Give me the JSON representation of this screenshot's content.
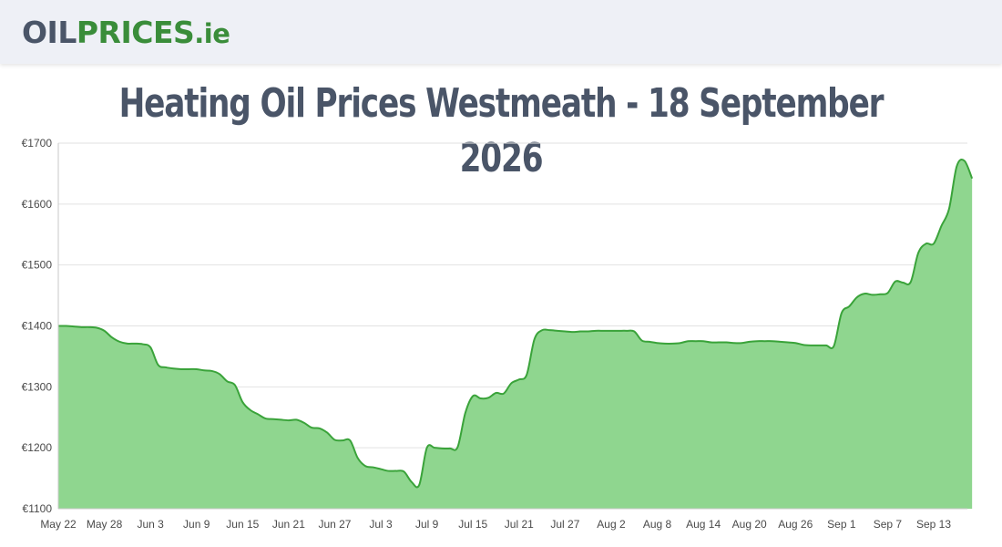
{
  "header": {
    "logo": {
      "part1": "OIL",
      "part2": "PRICES",
      "part3": ".ie"
    }
  },
  "page": {
    "title": "Heating Oil Prices Westmeath - 18 September 2026"
  },
  "colors": {
    "line": "#3aa33a",
    "area": "#8fd68f",
    "grid": "#e2e2e2"
  },
  "chart_data": {
    "type": "area",
    "title": "",
    "xlabel": "",
    "ylabel": "",
    "ylim": [
      1100,
      1700
    ],
    "yticks": [
      "€1100",
      "€1200",
      "€1300",
      "€1400",
      "€1500",
      "€1600",
      "€1700"
    ],
    "ytick_values": [
      1100,
      1200,
      1300,
      1400,
      1500,
      1600,
      1700
    ],
    "xticks": [
      "May 22",
      "May 28",
      "Jun 3",
      "Jun 9",
      "Jun 15",
      "Jun 21",
      "Jun 27",
      "Jul 3",
      "Jul 9",
      "Jul 15",
      "Jul 21",
      "Jul 27",
      "Aug 2",
      "Aug 8",
      "Aug 14",
      "Aug 20",
      "Aug 26",
      "Sep 1",
      "Sep 7",
      "Sep 13"
    ],
    "grid": true,
    "legend": "none",
    "x_start": "May 22",
    "x_end": "Sep 18",
    "series": [
      {
        "x": [
          "May 22",
          "May 23",
          "May 24",
          "May 25",
          "May 26",
          "May 27",
          "May 28",
          "May 29",
          "May 30",
          "May 31",
          "Jun 1",
          "Jun 2",
          "Jun 3",
          "Jun 4",
          "Jun 5",
          "Jun 6",
          "Jun 7",
          "Jun 8",
          "Jun 9",
          "Jun 10",
          "Jun 11",
          "Jun 12",
          "Jun 13",
          "Jun 14",
          "Jun 15",
          "Jun 16",
          "Jun 17",
          "Jun 18",
          "Jun 19",
          "Jun 20",
          "Jun 21",
          "Jun 22",
          "Jun 23",
          "Jun 24",
          "Jun 25",
          "Jun 26",
          "Jun 27",
          "Jun 28",
          "Jun 29",
          "Jun 30",
          "Jul 1",
          "Jul 2",
          "Jul 3",
          "Jul 4",
          "Jul 5",
          "Jul 6",
          "Jul 7",
          "Jul 8",
          "Jul 9",
          "Jul 10",
          "Jul 11",
          "Jul 12",
          "Jul 13",
          "Jul 14",
          "Jul 15",
          "Jul 16",
          "Jul 17",
          "Jul 18",
          "Jul 19",
          "Jul 20",
          "Jul 21",
          "Jul 22",
          "Jul 23",
          "Jul 24",
          "Jul 25",
          "Jul 26",
          "Jul 27",
          "Jul 28",
          "Jul 29",
          "Jul 30",
          "Jul 31",
          "Aug 1",
          "Aug 2",
          "Aug 3",
          "Aug 4",
          "Aug 5",
          "Aug 6",
          "Aug 7",
          "Aug 8",
          "Aug 9",
          "Aug 10",
          "Aug 11",
          "Aug 12",
          "Aug 13",
          "Aug 14",
          "Aug 15",
          "Aug 16",
          "Aug 17",
          "Aug 18",
          "Aug 19",
          "Aug 20",
          "Aug 21",
          "Aug 22",
          "Aug 23",
          "Aug 24",
          "Aug 25",
          "Aug 26",
          "Aug 27",
          "Aug 28",
          "Aug 29",
          "Aug 30",
          "Aug 31",
          "Sep 1",
          "Sep 2",
          "Sep 3",
          "Sep 4",
          "Sep 5",
          "Sep 6",
          "Sep 7",
          "Sep 8",
          "Sep 9",
          "Sep 10",
          "Sep 11",
          "Sep 12",
          "Sep 13",
          "Sep 14",
          "Sep 15",
          "Sep 16",
          "Sep 17",
          "Sep 18"
        ],
        "values": [
          1400,
          1400,
          1399,
          1398,
          1398,
          1397,
          1392,
          1381,
          1374,
          1371,
          1371,
          1370,
          1365,
          1336,
          1332,
          1330,
          1329,
          1329,
          1329,
          1327,
          1326,
          1321,
          1309,
          1303,
          1275,
          1262,
          1255,
          1248,
          1247,
          1246,
          1245,
          1246,
          1241,
          1233,
          1232,
          1225,
          1213,
          1212,
          1212,
          1183,
          1170,
          1168,
          1165,
          1162,
          1162,
          1161,
          1144,
          1139,
          1200,
          1200,
          1199,
          1199,
          1201,
          1257,
          1285,
          1281,
          1282,
          1290,
          1289,
          1306,
          1312,
          1320,
          1378,
          1393,
          1393,
          1392,
          1391,
          1390,
          1391,
          1391,
          1392,
          1392,
          1392,
          1392,
          1392,
          1391,
          1376,
          1374,
          1372,
          1371,
          1371,
          1372,
          1375,
          1375,
          1375,
          1373,
          1373,
          1373,
          1372,
          1372,
          1374,
          1375,
          1375,
          1375,
          1374,
          1373,
          1372,
          1369,
          1368,
          1368,
          1368,
          1367,
          1421,
          1432,
          1447,
          1453,
          1451,
          1452,
          1454,
          1473,
          1471,
          1472,
          1520,
          1535,
          1535,
          1564,
          1592,
          1662,
          1671,
          1642
        ]
      }
    ]
  }
}
